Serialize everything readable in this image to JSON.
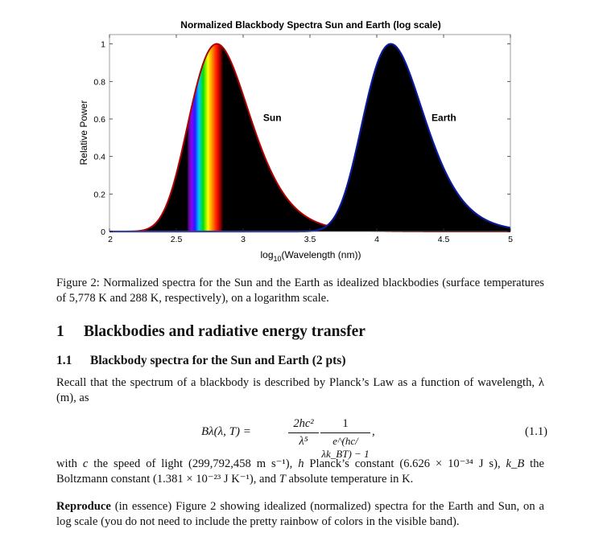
{
  "chart_data": {
    "type": "area",
    "title": "Normalized Blackbody Spectra Sun and Earth (log scale)",
    "xlabel": "log10(Wavelength (nm))",
    "ylabel": "Relative Power",
    "xlim": [
      2,
      5
    ],
    "ylim": [
      0,
      1.05
    ],
    "x_ticks": [
      "2",
      "2.5",
      "3",
      "3.5",
      "4",
      "4.5",
      "5"
    ],
    "y_ticks": [
      "0",
      "0.2",
      "0.4",
      "0.6",
      "0.8",
      "1"
    ],
    "grid": false,
    "series": [
      {
        "name": "Sun",
        "temperature_K": 5778,
        "peak_log10_nm": 2.7,
        "fill": "#000000",
        "stroke": "#b00000"
      },
      {
        "name": "Earth",
        "temperature_K": 288,
        "peak_log10_nm": 4.0,
        "fill": "#000000",
        "stroke": "#0a1a9a"
      }
    ],
    "visible_band_log10_nm": [
      2.58,
      2.85
    ],
    "annotations": [
      {
        "text": "Sun",
        "x": 3.15,
        "y": 0.59
      },
      {
        "text": "Earth",
        "x": 4.41,
        "y": 0.59
      }
    ]
  },
  "caption": "Figure 2: Normalized spectra for the Sun and the Earth as idealized blackbodies (surface temperatures of 5,778 K and 288 K, respectively), on a logarithm scale.",
  "section": {
    "number": "1",
    "title": "Blackbodies and radiative energy transfer"
  },
  "subsection": {
    "number": "1.1",
    "title": "Blackbody spectra for the Sun and Earth (2 pts)"
  },
  "paragraph1": "Recall that the spectrum of a blackbody is described by Planck’s Law as a function of wavelength, λ (m), as",
  "equation": {
    "lhs": "Bλ(λ, T) =",
    "num1": "2hc²",
    "den1": "λ⁵",
    "num2": "1",
    "den2": "e^(hc/λk_BT) − 1",
    "number": "(1.1)"
  },
  "paragraph2_a": "with ",
  "paragraph2_b": "c",
  "paragraph2_c": " the speed of light (299,792,458 m s⁻¹), ",
  "paragraph2_d": "h",
  "paragraph2_e": " Planck’s constant (6.626 × 10⁻³⁴ J s), ",
  "paragraph2_f": "k_B",
  "paragraph2_g": " the Boltzmann constant (1.381 × 10⁻²³ J K⁻¹), and ",
  "paragraph2_h": "T",
  "paragraph2_i": " absolute temperature in K.",
  "paragraph3_bold": "Reproduce",
  "paragraph3_rest": " (in essence) Figure 2 showing idealized (normalized) spectra for the Earth and Sun, on a log scale (you do not need to include the pretty rainbow of colors in the visible band)."
}
